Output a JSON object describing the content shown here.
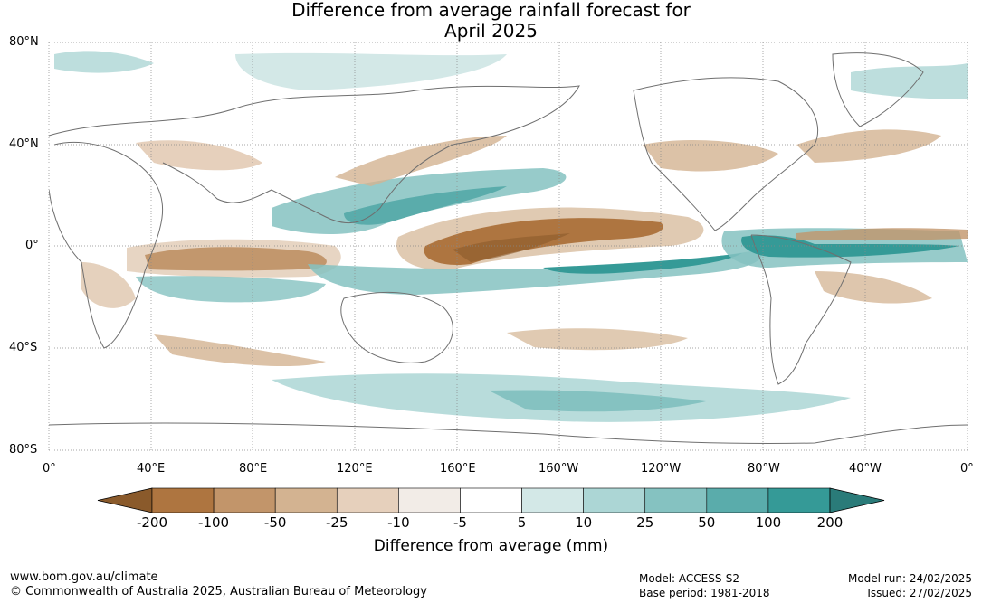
{
  "title_line1": "Difference from average rainfall forecast for",
  "title_line2": "April 2025",
  "lat_labels": [
    "80°N",
    "40°N",
    "0°",
    "40°S",
    "80°S"
  ],
  "lon_labels": [
    "0°",
    "40°E",
    "80°E",
    "120°E",
    "160°E",
    "160°W",
    "120°W",
    "80°W",
    "40°W",
    "0°"
  ],
  "colorbar": {
    "title": "Difference from average (mm)",
    "tick_labels": [
      "-200",
      "-100",
      "-50",
      "-25",
      "-10",
      "-5",
      "5",
      "10",
      "25",
      "50",
      "100",
      "200"
    ],
    "colors": [
      "#8a5a2b",
      "#ae7540",
      "#c2956a",
      "#d3b391",
      "#e6d0bc",
      "#f2ece7",
      "#ffffff",
      "#d3e8e7",
      "#acd6d5",
      "#85c2c1",
      "#5aacab",
      "#359a97",
      "#2a7b79"
    ]
  },
  "footer": {
    "website": "www.bom.gov.au/climate",
    "copyright": "© Commonwealth of Australia 2025, Australian Bureau of Meteorology",
    "model": "Model: ACCESS-S2",
    "base_period": "Base period: 1981-2018",
    "model_run": "Model run: 24/02/2025",
    "issued": "Issued: 27/02/2025"
  }
}
